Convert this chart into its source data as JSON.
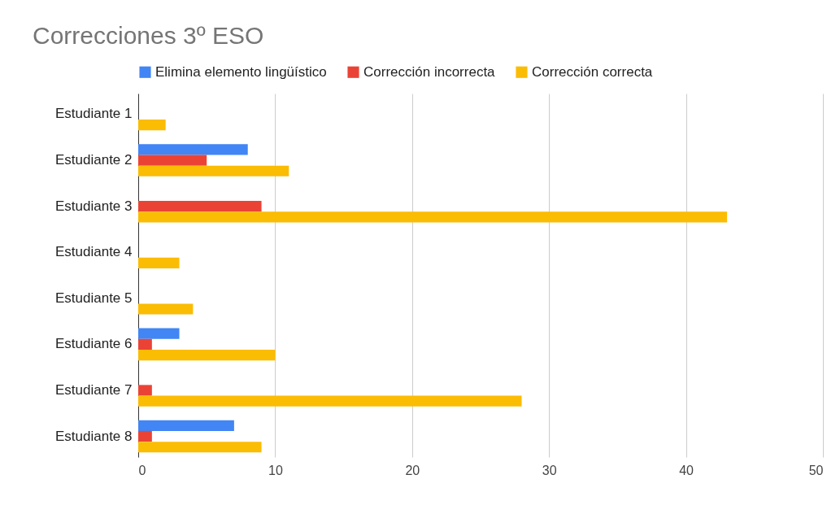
{
  "chart_data": {
    "type": "bar",
    "orientation": "horizontal",
    "title": "Correcciones 3º ESO",
    "categories": [
      "Estudiante 1",
      "Estudiante  2",
      "Estudiante  3",
      "Estudiante 4",
      "Estudiante  5",
      "Estudiante  6",
      "Estudiante  7",
      "Estudiante 8"
    ],
    "series": [
      {
        "name": "Elimina elemento lingüístico",
        "color": "#4285f4",
        "values": [
          0,
          8,
          0,
          0,
          0,
          3,
          0,
          7
        ]
      },
      {
        "name": "Corrección incorrecta",
        "color": "#ea4335",
        "values": [
          0,
          5,
          9,
          0,
          0,
          1,
          1,
          1
        ]
      },
      {
        "name": "Corrección correcta",
        "color": "#fbbc04",
        "values": [
          2,
          11,
          43,
          3,
          4,
          10,
          28,
          9
        ]
      }
    ],
    "xlim": [
      0,
      50
    ],
    "xticks": [
      0,
      10,
      20,
      30,
      40,
      50
    ],
    "grid": "x",
    "legend": "top"
  }
}
